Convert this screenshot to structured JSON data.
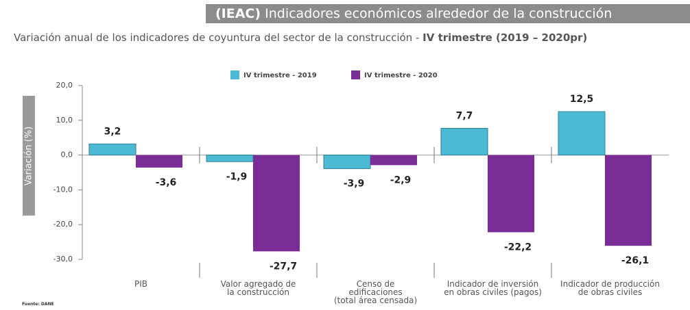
{
  "title_prefix": "(IEAC)",
  "title": "Indicadores económicos alrededor de la construcción",
  "subtitle": "Variación anual de los indicadores de coyuntura del sector de la construcción - ",
  "subtitle_bold": "IV trimestre (2019 – 2020pr)",
  "source": "Fuente: DANE",
  "chart_data": {
    "type": "bar",
    "y_label": "Variación  (%)",
    "categories": [
      "PIB",
      "Valor agregado de\nla construcción",
      "Censo de\nedificaciones\n(total área censada)",
      "Indicador de inversión\nen obras civiles (pagos)",
      "Indicador de producción\nde obras civiles"
    ],
    "series": [
      {
        "name": "IV trimestre - 2019",
        "color": "#4cbad3",
        "values": [
          3.2,
          -1.9,
          -3.9,
          7.7,
          12.5
        ],
        "value_labels": [
          "3,2",
          "-1,9",
          "-3,9",
          "7,7",
          "12,5"
        ]
      },
      {
        "name": "IV trimestre - 2020",
        "color": "#7b2d97",
        "values": [
          -3.6,
          -27.7,
          -2.9,
          -22.2,
          -26.1
        ],
        "value_labels": [
          "-3,6",
          "-27,7",
          "-2,9",
          "-22,2",
          "-26,1"
        ]
      }
    ],
    "ylim": [
      -30,
      20
    ],
    "yticks": [
      {
        "value": 20,
        "label": "20,0"
      },
      {
        "value": 10,
        "label": "10,0"
      },
      {
        "value": 0,
        "label": "0,0"
      },
      {
        "value": -10,
        "label": "-10,0"
      },
      {
        "value": -20,
        "label": "-20,0"
      },
      {
        "value": -30,
        "label": "-30,0"
      }
    ],
    "legend": "top"
  }
}
